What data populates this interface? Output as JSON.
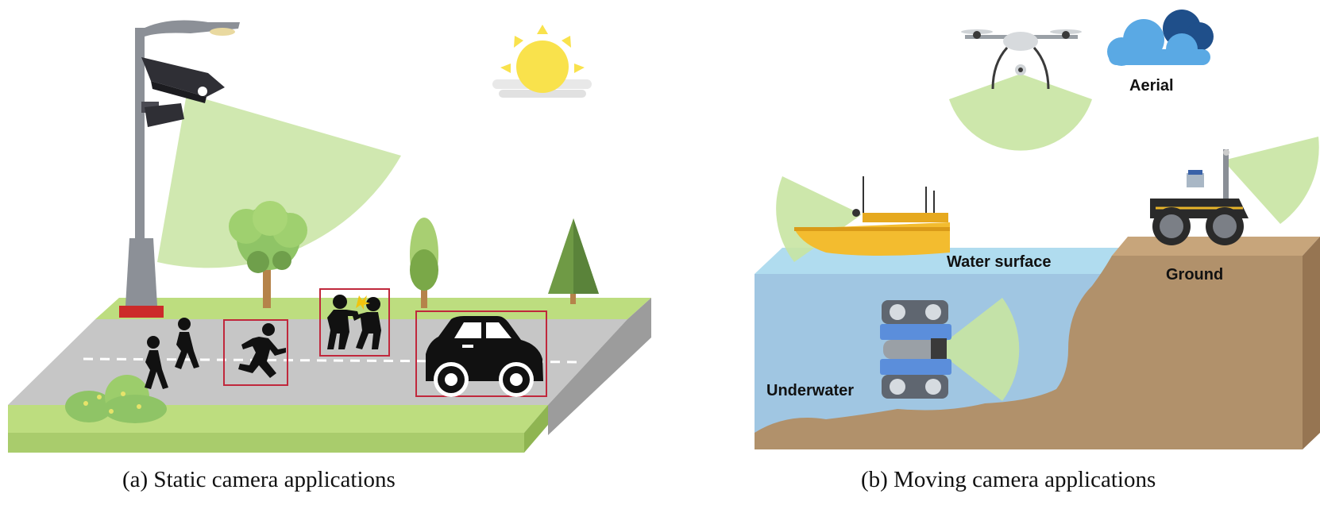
{
  "panel_a": {
    "caption": "(a) Static camera applications",
    "icons": [
      "street-lamp",
      "surveillance-camera",
      "sun",
      "tree",
      "pine-tree",
      "bush",
      "pedestrian",
      "running-person",
      "fighting-people",
      "car"
    ]
  },
  "panel_b": {
    "caption": "(b) Moving camera applications",
    "labels": {
      "aerial": "Aerial",
      "water_surface": "Water surface",
      "ground": "Ground",
      "underwater": "Underwater"
    },
    "icons": [
      "drone",
      "cloud",
      "boat",
      "ground-robot",
      "underwater-robot"
    ]
  },
  "colors": {
    "fov": "#c8e4a2",
    "grass": "#bddd7f",
    "road": "#c6c6c6",
    "detection_box": "#c0283c",
    "water": "#a0c6e2",
    "water_surface": "#b0dcef",
    "earth": "#b1916b",
    "sun": "#f9e24c",
    "boat": "#f3bc2f",
    "cloud": "#5aa9e4"
  }
}
